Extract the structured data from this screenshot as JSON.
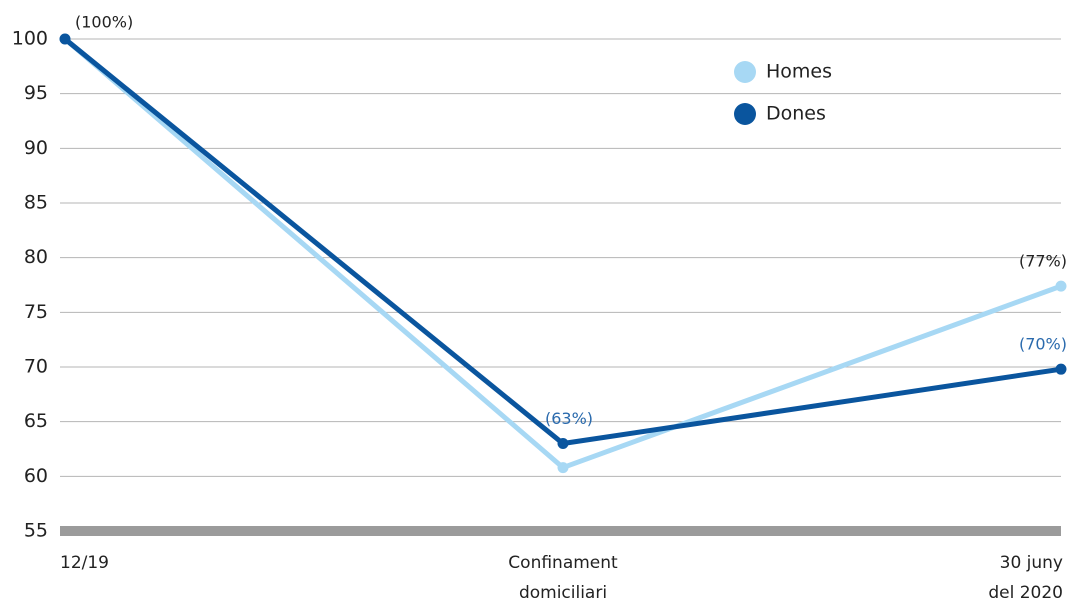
{
  "chart_data": {
    "type": "line",
    "categories": [
      "12/19",
      "Confinament\ndomiciliari",
      "30  juny\ndel 2020"
    ],
    "series": [
      {
        "name": "Homes",
        "color": "#a7d8f4",
        "values": [
          100,
          60.8,
          77.4
        ],
        "value_labels": [
          "(100%)",
          null,
          "(77%)"
        ],
        "label_color": "#222222"
      },
      {
        "name": "Dones",
        "color": "#0a559e",
        "values": [
          100,
          63,
          69.8
        ],
        "value_labels": [
          null,
          "(63%)",
          "(70%)"
        ],
        "label_color": "#2a6aad"
      }
    ],
    "ylim": [
      55,
      100
    ],
    "yticks": [
      55,
      60,
      65,
      70,
      75,
      80,
      85,
      90,
      95,
      100
    ],
    "grid": true,
    "legend": "top-right"
  }
}
